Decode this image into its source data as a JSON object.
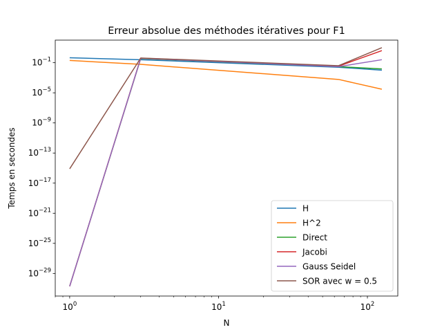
{
  "chart_data": {
    "type": "line",
    "title": "Erreur absolue des méthodes itératives pour F1",
    "xlabel": "N",
    "ylabel": "Temps en secondes",
    "xscale": "log",
    "yscale": "log",
    "xlim": [
      0.8,
      160
    ],
    "ylim": [
      1e-32,
      100.0
    ],
    "xticks": [
      {
        "value": 1,
        "base": "10",
        "exp": "0"
      },
      {
        "value": 10,
        "base": "10",
        "exp": "1"
      },
      {
        "value": 100,
        "base": "10",
        "exp": "2"
      }
    ],
    "yticks": [
      {
        "value": 1e-29,
        "base": "10",
        "exp": "−29"
      },
      {
        "value": 1e-25,
        "base": "10",
        "exp": "−25"
      },
      {
        "value": 1e-21,
        "base": "10",
        "exp": "−21"
      },
      {
        "value": 1e-17,
        "base": "10",
        "exp": "−17"
      },
      {
        "value": 1e-13,
        "base": "10",
        "exp": "−13"
      },
      {
        "value": 1e-09,
        "base": "10",
        "exp": "−9"
      },
      {
        "value": 1e-05,
        "base": "10",
        "exp": "−5"
      },
      {
        "value": 0.1,
        "base": "10",
        "exp": "−1"
      }
    ],
    "grid": false,
    "legend_position": "lower-right",
    "x": [
      1,
      3,
      64,
      125
    ],
    "series": [
      {
        "name": "H",
        "color": "#1f77b4",
        "values": [
          0.45,
          0.25,
          0.025,
          0.01
        ]
      },
      {
        "name": "H^2",
        "color": "#ff7f0e",
        "values": [
          0.2,
          0.06,
          0.0006,
          3e-05
        ]
      },
      {
        "name": "Direct",
        "color": "#2ca02c",
        "values": [
          2e-31,
          0.35,
          0.03,
          0.015
        ]
      },
      {
        "name": "Jacobi",
        "color": "#d62728",
        "values": [
          2e-31,
          0.4,
          0.035,
          4
        ]
      },
      {
        "name": "Gauss Seidel",
        "color": "#9467bd",
        "values": [
          2e-31,
          0.38,
          0.03,
          0.25
        ]
      },
      {
        "name": "SOR avec w = 0.5",
        "color": "#8c564b",
        "values": [
          8e-16,
          0.42,
          0.04,
          10
        ]
      }
    ]
  }
}
